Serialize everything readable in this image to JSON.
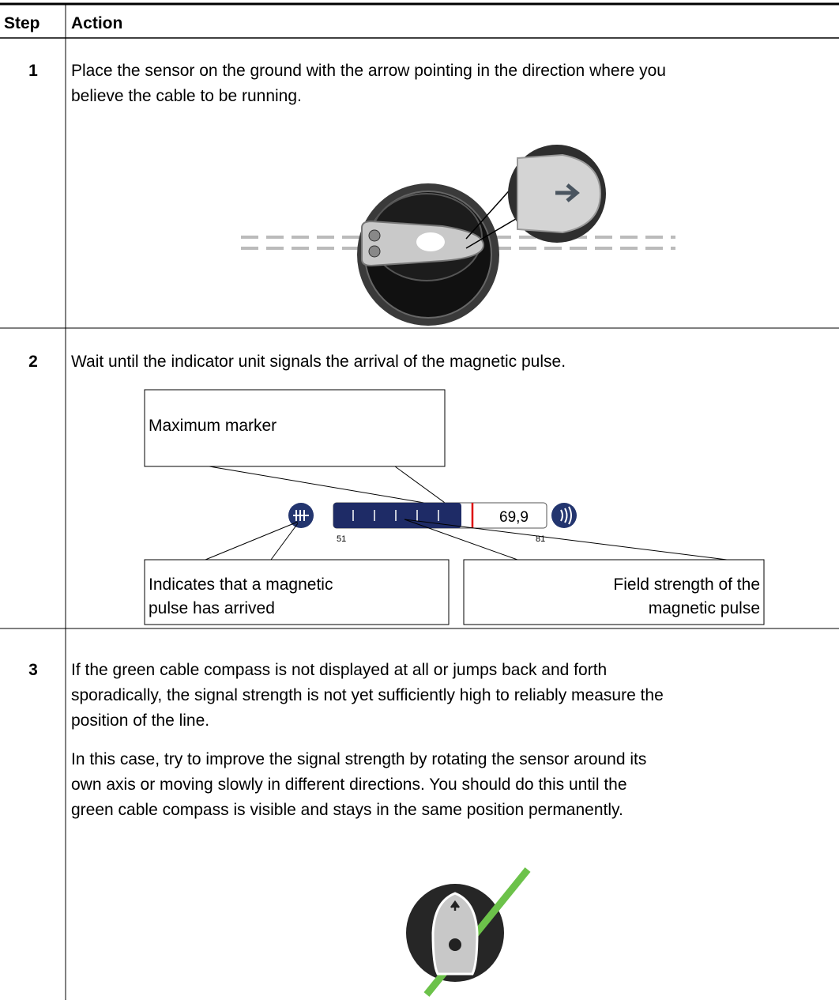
{
  "table": {
    "header": [
      "Step",
      "Action"
    ],
    "rows": [
      {
        "step": "1",
        "paragraphs": [
          [
            "Place the sensor on the ground with the arrow pointing in the direction where you",
            "believe the cable to be running."
          ]
        ]
      },
      {
        "step": "2",
        "paragraphs": [
          [
            "Wait until the indicator unit signals the arrival of the magnetic pulse."
          ]
        ]
      },
      {
        "step": "3",
        "paragraphs": [
          [
            "If the green cable compass is not displayed at all or jumps back and forth",
            "sporadically, the signal strength is not yet sufficiently high to reliably measure the",
            "position of the line."
          ],
          [
            "In this case, try to improve the signal strength by rotating the sensor around its",
            "own axis or moving slowly in different directions. You should do this until the",
            "green cable compass is visible and stays in the same position permanently."
          ]
        ]
      }
    ]
  },
  "indicator": {
    "callouts": [
      [
        "Maximum marker"
      ],
      [
        "Indicates that a magnetic",
        "pulse has arrived"
      ],
      [
        "Field strength of the",
        "magnetic pulse"
      ]
    ],
    "reading": "69,9",
    "scale_min": "51",
    "scale_max": "81"
  }
}
